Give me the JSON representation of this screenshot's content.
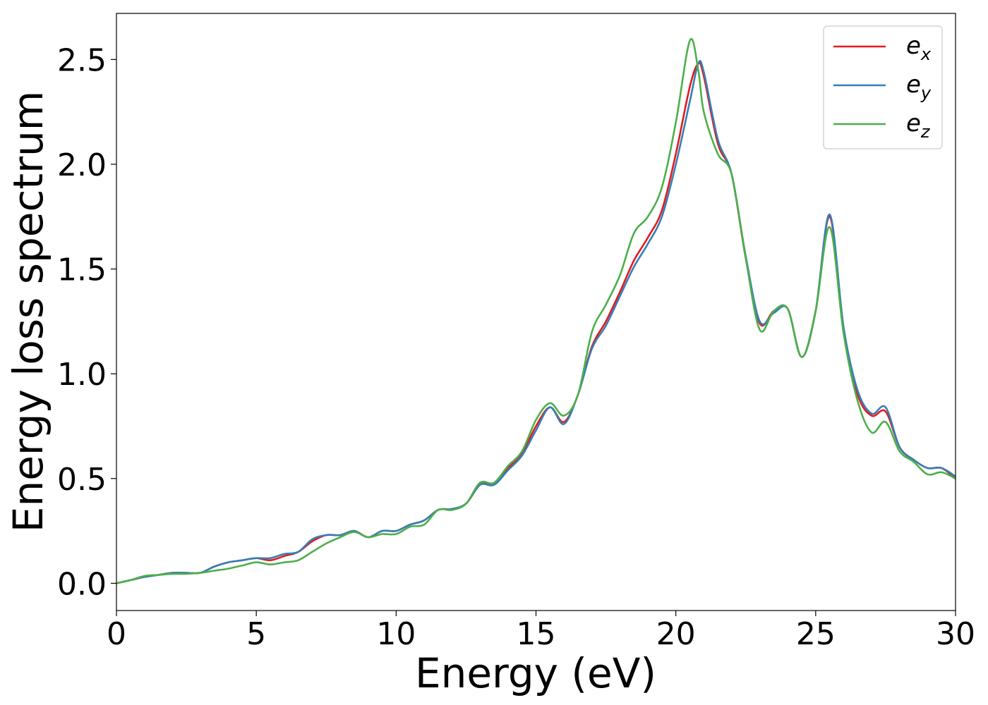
{
  "chart_data": {
    "type": "line",
    "title": "",
    "xlabel": "Energy (eV)",
    "ylabel": "Energy loss spectrum",
    "xlim": [
      0,
      30
    ],
    "ylim": [
      -0.13,
      2.72
    ],
    "xticks": [
      0,
      5,
      10,
      15,
      20,
      25,
      30
    ],
    "xtick_labels": [
      "0",
      "5",
      "10",
      "15",
      "20",
      "25",
      "30"
    ],
    "yticks": [
      0.0,
      0.5,
      1.0,
      1.5,
      2.0,
      2.5
    ],
    "ytick_labels": [
      "0.0",
      "0.5",
      "1.0",
      "1.5",
      "2.0",
      "2.5"
    ],
    "grid": false,
    "legend_position": "top-right",
    "series": [
      {
        "name": "e_x",
        "legend_main": "e",
        "legend_sub": "x",
        "color": "#e41a1c",
        "points": [
          [
            0,
            0.0
          ],
          [
            0.5,
            0.015
          ],
          [
            1,
            0.03
          ],
          [
            1.5,
            0.04
          ],
          [
            2,
            0.05
          ],
          [
            2.5,
            0.05
          ],
          [
            3,
            0.05
          ],
          [
            3.5,
            0.08
          ],
          [
            4,
            0.1
          ],
          [
            4.5,
            0.11
          ],
          [
            5,
            0.12
          ],
          [
            5.5,
            0.11
          ],
          [
            6,
            0.13
          ],
          [
            6.5,
            0.15
          ],
          [
            7,
            0.2
          ],
          [
            7.5,
            0.23
          ],
          [
            8,
            0.23
          ],
          [
            8.5,
            0.25
          ],
          [
            9,
            0.22
          ],
          [
            9.5,
            0.25
          ],
          [
            10,
            0.25
          ],
          [
            10.5,
            0.28
          ],
          [
            11,
            0.3
          ],
          [
            11.5,
            0.35
          ],
          [
            12,
            0.355
          ],
          [
            12.5,
            0.38
          ],
          [
            13,
            0.47
          ],
          [
            13.5,
            0.48
          ],
          [
            14,
            0.55
          ],
          [
            14.5,
            0.62
          ],
          [
            15,
            0.75
          ],
          [
            15.5,
            0.84
          ],
          [
            16,
            0.77
          ],
          [
            16.5,
            0.9
          ],
          [
            17,
            1.13
          ],
          [
            17.5,
            1.25
          ],
          [
            18,
            1.39
          ],
          [
            18.5,
            1.54
          ],
          [
            19,
            1.65
          ],
          [
            19.5,
            1.78
          ],
          [
            20,
            2.05
          ],
          [
            20.5,
            2.37
          ],
          [
            20.8,
            2.48
          ],
          [
            21,
            2.42
          ],
          [
            21.5,
            2.1
          ],
          [
            22,
            1.95
          ],
          [
            22.5,
            1.55
          ],
          [
            23,
            1.24
          ],
          [
            23.5,
            1.3
          ],
          [
            24,
            1.31
          ],
          [
            24.5,
            1.08
          ],
          [
            25,
            1.3
          ],
          [
            25.5,
            1.75
          ],
          [
            26,
            1.2
          ],
          [
            26.5,
            0.9
          ],
          [
            27,
            0.8
          ],
          [
            27.5,
            0.82
          ],
          [
            28,
            0.65
          ],
          [
            28.5,
            0.59
          ],
          [
            29,
            0.55
          ],
          [
            29.5,
            0.55
          ],
          [
            30,
            0.5
          ]
        ]
      },
      {
        "name": "e_y",
        "legend_main": "e",
        "legend_sub": "y",
        "color": "#377eb8",
        "points": [
          [
            0,
            0.0
          ],
          [
            0.5,
            0.015
          ],
          [
            1,
            0.03
          ],
          [
            1.5,
            0.04
          ],
          [
            2,
            0.05
          ],
          [
            2.5,
            0.05
          ],
          [
            3,
            0.05
          ],
          [
            3.5,
            0.08
          ],
          [
            4,
            0.1
          ],
          [
            4.5,
            0.11
          ],
          [
            5,
            0.12
          ],
          [
            5.5,
            0.12
          ],
          [
            6,
            0.14
          ],
          [
            6.5,
            0.15
          ],
          [
            7,
            0.21
          ],
          [
            7.5,
            0.23
          ],
          [
            8,
            0.23
          ],
          [
            8.5,
            0.25
          ],
          [
            9,
            0.22
          ],
          [
            9.5,
            0.25
          ],
          [
            10,
            0.25
          ],
          [
            10.5,
            0.28
          ],
          [
            11,
            0.3
          ],
          [
            11.5,
            0.35
          ],
          [
            12,
            0.355
          ],
          [
            12.5,
            0.38
          ],
          [
            13,
            0.47
          ],
          [
            13.5,
            0.47
          ],
          [
            14,
            0.54
          ],
          [
            14.5,
            0.61
          ],
          [
            15,
            0.73
          ],
          [
            15.5,
            0.84
          ],
          [
            16,
            0.76
          ],
          [
            16.5,
            0.9
          ],
          [
            17,
            1.12
          ],
          [
            17.5,
            1.23
          ],
          [
            18,
            1.37
          ],
          [
            18.5,
            1.51
          ],
          [
            19,
            1.62
          ],
          [
            19.5,
            1.75
          ],
          [
            20,
            2.0
          ],
          [
            20.5,
            2.3
          ],
          [
            20.8,
            2.48
          ],
          [
            21,
            2.44
          ],
          [
            21.5,
            2.12
          ],
          [
            22,
            1.95
          ],
          [
            22.5,
            1.56
          ],
          [
            23,
            1.25
          ],
          [
            23.5,
            1.29
          ],
          [
            24,
            1.31
          ],
          [
            24.5,
            1.08
          ],
          [
            25,
            1.3
          ],
          [
            25.5,
            1.76
          ],
          [
            26,
            1.22
          ],
          [
            26.5,
            0.92
          ],
          [
            27,
            0.81
          ],
          [
            27.5,
            0.84
          ],
          [
            28,
            0.65
          ],
          [
            28.5,
            0.59
          ],
          [
            29,
            0.55
          ],
          [
            29.5,
            0.55
          ],
          [
            30,
            0.51
          ]
        ]
      },
      {
        "name": "e_z",
        "legend_main": "e",
        "legend_sub": "z",
        "color": "#4daf4a",
        "points": [
          [
            0,
            0.0
          ],
          [
            0.5,
            0.015
          ],
          [
            1,
            0.035
          ],
          [
            1.5,
            0.04
          ],
          [
            2,
            0.045
          ],
          [
            2.5,
            0.045
          ],
          [
            3,
            0.05
          ],
          [
            3.5,
            0.06
          ],
          [
            4,
            0.07
          ],
          [
            4.5,
            0.085
          ],
          [
            5,
            0.1
          ],
          [
            5.5,
            0.09
          ],
          [
            6,
            0.1
          ],
          [
            6.5,
            0.11
          ],
          [
            7,
            0.15
          ],
          [
            7.5,
            0.19
          ],
          [
            8,
            0.22
          ],
          [
            8.5,
            0.245
          ],
          [
            9,
            0.22
          ],
          [
            9.5,
            0.235
          ],
          [
            10,
            0.235
          ],
          [
            10.5,
            0.27
          ],
          [
            11,
            0.28
          ],
          [
            11.5,
            0.35
          ],
          [
            12,
            0.35
          ],
          [
            12.5,
            0.38
          ],
          [
            13,
            0.48
          ],
          [
            13.5,
            0.48
          ],
          [
            14,
            0.56
          ],
          [
            14.5,
            0.63
          ],
          [
            15,
            0.78
          ],
          [
            15.5,
            0.86
          ],
          [
            16,
            0.8
          ],
          [
            16.5,
            0.9
          ],
          [
            17,
            1.2
          ],
          [
            17.5,
            1.33
          ],
          [
            18,
            1.47
          ],
          [
            18.5,
            1.67
          ],
          [
            19,
            1.75
          ],
          [
            19.5,
            1.89
          ],
          [
            20,
            2.2
          ],
          [
            20.5,
            2.59
          ],
          [
            20.8,
            2.45
          ],
          [
            21,
            2.25
          ],
          [
            21.5,
            2.05
          ],
          [
            22,
            1.95
          ],
          [
            22.5,
            1.55
          ],
          [
            23,
            1.21
          ],
          [
            23.5,
            1.3
          ],
          [
            24,
            1.31
          ],
          [
            24.5,
            1.08
          ],
          [
            25,
            1.3
          ],
          [
            25.5,
            1.7
          ],
          [
            26,
            1.19
          ],
          [
            26.5,
            0.87
          ],
          [
            27,
            0.72
          ],
          [
            27.5,
            0.77
          ],
          [
            28,
            0.63
          ],
          [
            28.5,
            0.58
          ],
          [
            29,
            0.52
          ],
          [
            29.5,
            0.53
          ],
          [
            30,
            0.5
          ]
        ]
      }
    ]
  }
}
